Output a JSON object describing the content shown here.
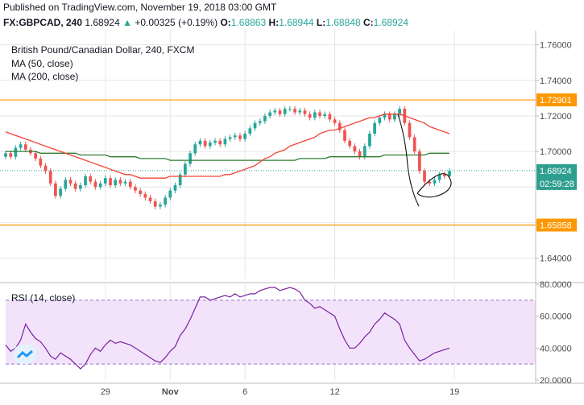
{
  "header": {
    "published": "Published on TradingView.com, November 19, 2018 03:00 GMT",
    "symbol": "FX:GBPCAD, 240",
    "last": "1.68924",
    "change_arrow": "▲",
    "change": "+0.00325 (+0.19%)",
    "o_label": "O:",
    "o_value": "1.68863",
    "h_label": "H:",
    "h_value": "1.68944",
    "l_label": "L:",
    "l_value": "1.68848",
    "c_label": "C:",
    "c_value": "1.68924"
  },
  "legend": {
    "title": "British Pound/Canadian Dollar, 240, FXCM",
    "ma50": "MA (50, close)",
    "ma200": "MA (200, close)",
    "rsi": "RSI (14, close)"
  },
  "colors": {
    "up": "#26a69a",
    "down": "#ef5350",
    "ma50": "#f44336",
    "ma200": "#2e7d32",
    "hline": "#ff9800",
    "rsi": "#7b1fa2",
    "rsi_band": "#f3e3fa",
    "axis_text": "#4a4a4a",
    "grid": "#e6e6e6",
    "current_label_bg": "#2e9e8f"
  },
  "chart_data": [
    {
      "type": "line",
      "subtype": "candlestick",
      "ylim": [
        1.628,
        1.768
      ],
      "y_ticks": [
        "1.76000",
        "1.74000",
        "1.72000",
        "1.70000",
        "1.68000",
        "1.66000",
        "1.64000"
      ],
      "y_tick_values": [
        1.76,
        1.74,
        1.72,
        1.7,
        1.68,
        1.66,
        1.64
      ],
      "x_ticks": [
        "29",
        "Nov",
        "6",
        "12",
        "19"
      ],
      "x_tick_index": [
        20,
        33,
        48,
        66,
        90
      ],
      "n_bars": 90,
      "price_lines": [
        {
          "value": 1.72901,
          "label": "1.72901"
        },
        {
          "value": 1.65858,
          "label": "1.65858"
        }
      ],
      "current_price": {
        "value": 1.68924,
        "label": "1.68924",
        "countdown": "02:59:28"
      },
      "close": [
        1.699,
        1.697,
        1.702,
        1.704,
        1.701,
        1.699,
        1.696,
        1.692,
        1.689,
        1.682,
        1.675,
        1.679,
        1.684,
        1.682,
        1.679,
        1.681,
        1.686,
        1.683,
        1.68,
        1.682,
        1.685,
        1.681,
        1.684,
        1.682,
        1.683,
        1.68,
        1.678,
        1.676,
        1.674,
        1.672,
        1.669,
        1.67,
        1.674,
        1.678,
        1.681,
        1.687,
        1.693,
        1.699,
        1.704,
        1.706,
        1.703,
        1.705,
        1.706,
        1.704,
        1.707,
        1.708,
        1.709,
        1.707,
        1.71,
        1.713,
        1.716,
        1.717,
        1.72,
        1.722,
        1.723,
        1.721,
        1.724,
        1.724,
        1.722,
        1.723,
        1.721,
        1.719,
        1.722,
        1.72,
        1.721,
        1.718,
        1.716,
        1.712,
        1.706,
        1.703,
        1.7,
        1.697,
        1.703,
        1.71,
        1.716,
        1.719,
        1.721,
        1.718,
        1.721,
        1.724,
        1.716,
        1.708,
        1.7,
        1.689,
        1.683,
        1.682,
        1.684,
        1.687,
        1.686,
        1.689
      ],
      "series": [
        {
          "name": "MA (50, close)",
          "values": [
            1.711,
            1.71,
            1.709,
            1.708,
            1.707,
            1.706,
            1.705,
            1.704,
            1.703,
            1.702,
            1.701,
            1.7,
            1.699,
            1.698,
            1.697,
            1.696,
            1.695,
            1.694,
            1.693,
            1.692,
            1.691,
            1.69,
            1.689,
            1.688,
            1.687,
            1.687,
            1.686,
            1.685,
            1.685,
            1.685,
            1.685,
            1.685,
            1.685,
            1.686,
            1.686,
            1.686,
            1.686,
            1.686,
            1.686,
            1.686,
            1.686,
            1.686,
            1.686,
            1.686,
            1.687,
            1.687,
            1.688,
            1.689,
            1.69,
            1.691,
            1.692,
            1.694,
            1.696,
            1.697,
            1.699,
            1.7,
            1.701,
            1.703,
            1.704,
            1.705,
            1.706,
            1.707,
            1.708,
            1.71,
            1.711,
            1.712,
            1.712,
            1.713,
            1.714,
            1.715,
            1.716,
            1.717,
            1.718,
            1.719,
            1.719,
            1.72,
            1.721,
            1.721,
            1.721,
            1.721,
            1.72,
            1.719,
            1.718,
            1.717,
            1.716,
            1.714,
            1.713,
            1.712,
            1.711,
            1.71
          ]
        },
        {
          "name": "MA (200, close)",
          "values": [
            1.7,
            1.7,
            1.7,
            1.7,
            1.7,
            1.7,
            1.7,
            1.699,
            1.699,
            1.699,
            1.699,
            1.699,
            1.699,
            1.699,
            1.699,
            1.698,
            1.698,
            1.698,
            1.698,
            1.698,
            1.698,
            1.697,
            1.697,
            1.697,
            1.697,
            1.697,
            1.697,
            1.696,
            1.696,
            1.696,
            1.696,
            1.696,
            1.696,
            1.695,
            1.695,
            1.695,
            1.695,
            1.695,
            1.695,
            1.695,
            1.695,
            1.695,
            1.695,
            1.695,
            1.695,
            1.695,
            1.695,
            1.695,
            1.695,
            1.695,
            1.695,
            1.695,
            1.695,
            1.695,
            1.695,
            1.695,
            1.695,
            1.695,
            1.695,
            1.696,
            1.696,
            1.696,
            1.696,
            1.696,
            1.696,
            1.697,
            1.697,
            1.697,
            1.697,
            1.697,
            1.697,
            1.697,
            1.697,
            1.697,
            1.697,
            1.697,
            1.698,
            1.698,
            1.698,
            1.698,
            1.698,
            1.698,
            1.698,
            1.698,
            1.698,
            1.699,
            1.699,
            1.699,
            1.699,
            1.699
          ]
        }
      ]
    },
    {
      "type": "line",
      "title": "RSI (14, close)",
      "ylim": [
        20,
        80
      ],
      "y_ticks": [
        "80.0000",
        "60.0000",
        "40.0000",
        "20.0000"
      ],
      "y_tick_values": [
        80,
        60,
        40,
        20
      ],
      "band": [
        30,
        70
      ],
      "series": [
        {
          "name": "RSI (14, close)",
          "values": [
            42,
            38,
            40,
            45,
            55,
            50,
            46,
            44,
            40,
            35,
            33,
            37,
            35,
            33,
            30,
            27,
            30,
            36,
            40,
            38,
            42,
            45,
            43,
            44,
            43,
            42,
            40,
            38,
            36,
            34,
            32,
            31,
            34,
            38,
            41,
            48,
            52,
            58,
            65,
            72,
            72,
            70,
            71,
            72,
            73,
            72,
            74,
            72,
            73,
            74,
            74,
            76,
            77,
            78,
            78,
            76,
            77,
            78,
            77,
            75,
            70,
            68,
            65,
            66,
            64,
            62,
            60,
            52,
            45,
            40,
            40,
            43,
            47,
            50,
            55,
            58,
            62,
            60,
            58,
            55,
            45,
            40,
            36,
            32,
            33,
            35,
            37,
            38,
            39,
            40
          ]
        }
      ]
    }
  ]
}
